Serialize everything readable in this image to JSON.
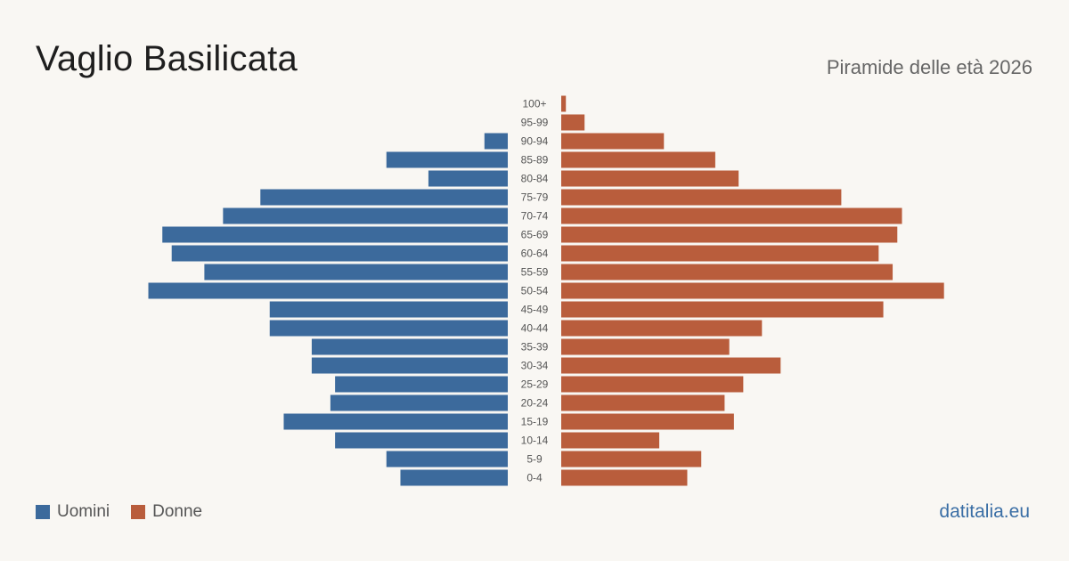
{
  "header": {
    "title": "Vaglio Basilicata",
    "subtitle": "Piramide delle età 2026"
  },
  "legend": {
    "men_label": "Uomini",
    "women_label": "Donne"
  },
  "footer": {
    "source": "datitalia.eu"
  },
  "colors": {
    "men": "#3c6a9c",
    "women": "#b95d3c",
    "background": "#f9f7f3"
  },
  "chart_data": {
    "type": "bar",
    "orientation": "horizontal-pyramid",
    "categories": [
      "100+",
      "95-99",
      "90-94",
      "85-89",
      "80-84",
      "75-79",
      "70-74",
      "65-69",
      "60-64",
      "55-59",
      "50-54",
      "45-49",
      "40-44",
      "35-39",
      "30-34",
      "25-29",
      "20-24",
      "15-19",
      "10-14",
      "5-9",
      "0-4"
    ],
    "series": [
      {
        "name": "Uomini",
        "values": [
          0,
          0,
          5,
          26,
          17,
          53,
          61,
          74,
          72,
          65,
          77,
          51,
          51,
          42,
          42,
          37,
          38,
          48,
          37,
          26,
          23
        ]
      },
      {
        "name": "Donne",
        "values": [
          1,
          5,
          22,
          33,
          38,
          60,
          73,
          72,
          68,
          71,
          82,
          69,
          43,
          36,
          47,
          39,
          35,
          37,
          21,
          30,
          27
        ]
      }
    ],
    "grid": false,
    "legend_position": "bottom-left"
  }
}
